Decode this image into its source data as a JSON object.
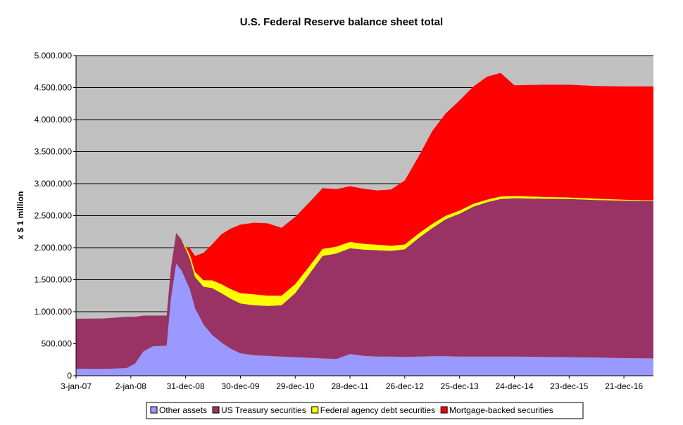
{
  "chart_data": {
    "type": "area",
    "stacked": true,
    "title": "U.S. Federal Reserve balance sheet total",
    "xlabel": "",
    "ylabel": "x $ 1 million",
    "ylim": [
      0,
      5000000
    ],
    "yticks": [
      0,
      500000,
      1000000,
      1500000,
      2000000,
      2500000,
      3000000,
      3500000,
      4000000,
      4500000,
      5000000
    ],
    "ytick_labels": [
      "0",
      "500.000",
      "1.000.000",
      "1.500.000",
      "2.000.000",
      "2.500.000",
      "3.000.000",
      "3.500.000",
      "4.000.000",
      "4.500.000",
      "5.000.000"
    ],
    "x_start": "2007-01-03",
    "x_end": "2017-07-05",
    "xticks": [
      "2007-01-03",
      "2008-01-02",
      "2008-12-31",
      "2009-12-30",
      "2010-12-29",
      "2011-12-28",
      "2012-12-26",
      "2013-12-25",
      "2014-12-24",
      "2015-12-23",
      "2016-12-21"
    ],
    "xtick_labels": [
      "3-jan-07",
      "2-jan-08",
      "31-dec-08",
      "30-dec-09",
      "29-dec-10",
      "28-dec-11",
      "26-dec-12",
      "25-dec-13",
      "24-dec-14",
      "23-dec-15",
      "21-dec-16"
    ],
    "grid": true,
    "background": "#c0c0c0",
    "legend_position": "bottom",
    "x": [
      "2007-01-03",
      "2007-07-04",
      "2007-12-05",
      "2008-01-30",
      "2008-03-26",
      "2008-05-28",
      "2008-08-27",
      "2008-09-24",
      "2008-10-29",
      "2008-12-03",
      "2008-12-31",
      "2009-01-28",
      "2009-03-04",
      "2009-04-29",
      "2009-06-24",
      "2009-08-26",
      "2009-10-28",
      "2009-12-30",
      "2010-03-31",
      "2010-06-30",
      "2010-09-29",
      "2010-12-29",
      "2011-03-30",
      "2011-06-29",
      "2011-09-28",
      "2011-12-28",
      "2012-03-28",
      "2012-06-27",
      "2012-09-26",
      "2012-12-26",
      "2013-03-27",
      "2013-06-26",
      "2013-09-25",
      "2013-12-25",
      "2014-03-26",
      "2014-06-25",
      "2014-09-24",
      "2014-12-24",
      "2015-06-24",
      "2015-12-23",
      "2016-06-22",
      "2016-12-21",
      "2017-07-05"
    ],
    "series": [
      {
        "name": "Other assets",
        "color": "#9999ff",
        "values": [
          110000,
          105000,
          120000,
          190000,
          380000,
          460000,
          470000,
          1200000,
          1750000,
          1650000,
          1500000,
          1350000,
          1050000,
          800000,
          640000,
          520000,
          420000,
          350000,
          320000,
          310000,
          300000,
          290000,
          280000,
          270000,
          260000,
          340000,
          310000,
          300000,
          300000,
          295000,
          300000,
          305000,
          305000,
          300000,
          300000,
          300000,
          300000,
          300000,
          295000,
          290000,
          285000,
          275000,
          270000
        ]
      },
      {
        "name": "US Treasury securities",
        "color": "#993366",
        "values": [
          780000,
          790000,
          800000,
          730000,
          560000,
          480000,
          470000,
          480000,
          480000,
          480000,
          480000,
          480000,
          490000,
          590000,
          730000,
          770000,
          780000,
          780000,
          780000,
          780000,
          800000,
          1000000,
          1300000,
          1600000,
          1650000,
          1650000,
          1660000,
          1660000,
          1650000,
          1680000,
          1850000,
          2000000,
          2140000,
          2230000,
          2340000,
          2410000,
          2460000,
          2470000,
          2470000,
          2470000,
          2460000,
          2460000,
          2460000
        ]
      },
      {
        "name": "Federal agency debt securities",
        "color": "#ffff00",
        "values": [
          0,
          0,
          0,
          0,
          0,
          0,
          0,
          0,
          0,
          0,
          40000,
          60000,
          80000,
          100000,
          120000,
          140000,
          150000,
          160000,
          170000,
          160000,
          150000,
          140000,
          120000,
          110000,
          105000,
          100000,
          90000,
          85000,
          80000,
          75000,
          70000,
          65000,
          55000,
          50000,
          45000,
          40000,
          40000,
          35000,
          30000,
          25000,
          20000,
          15000,
          10000
        ]
      },
      {
        "name": "Mortgage-backed securities",
        "color": "#ff0000",
        "values": [
          0,
          0,
          0,
          0,
          0,
          0,
          0,
          0,
          0,
          0,
          0,
          100000,
          250000,
          430000,
          560000,
          780000,
          950000,
          1070000,
          1120000,
          1130000,
          1060000,
          1050000,
          1000000,
          950000,
          900000,
          870000,
          860000,
          850000,
          880000,
          1000000,
          1200000,
          1450000,
          1600000,
          1720000,
          1830000,
          1920000,
          1930000,
          1730000,
          1750000,
          1760000,
          1760000,
          1770000,
          1780000
        ]
      }
    ]
  }
}
